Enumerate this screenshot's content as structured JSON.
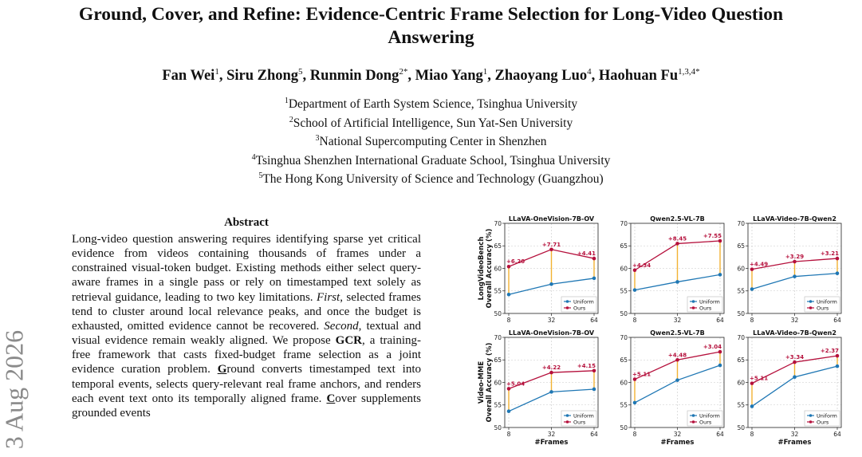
{
  "paper": {
    "title": "Ground, Cover, and Refine: Evidence-Centric Frame Selection for Long-Video Question Answering",
    "authors": [
      {
        "name": "Fan Wei",
        "sup": "1"
      },
      {
        "name": "Siru Zhong",
        "sup": "5"
      },
      {
        "name": "Runmin Dong",
        "sup": "2*"
      },
      {
        "name": "Miao Yang",
        "sup": "1"
      },
      {
        "name": "Zhaoyang Luo",
        "sup": "4"
      },
      {
        "name": "Haohuan Fu",
        "sup": "1,3,4*"
      }
    ],
    "affiliations": [
      {
        "num": "1",
        "text": "Department of Earth System Science, Tsinghua University"
      },
      {
        "num": "2",
        "text": "School of Artificial Intelligence, Sun Yat-Sen University"
      },
      {
        "num": "3",
        "text": "National Supercomputing Center in Shenzhen"
      },
      {
        "num": "4",
        "text": "Tsinghua Shenzhen International Graduate School, Tsinghua University"
      },
      {
        "num": "5",
        "text": "The Hong Kong University of Science and Technology (Guangzhou)"
      }
    ],
    "arxiv_stamp": "3 Aug 2026",
    "abstract_heading": "Abstract",
    "abstract": {
      "p1": "Long-video question answering requires identifying sparse yet critical evidence from videos containing thousands of frames under a constrained visual-token budget. Existing methods either select query-aware frames in a single pass or rely on timestamped text solely as retrieval guidance, leading to two key limitations. ",
      "first": "First",
      "p2": ", selected frames tend to cluster around local relevance peaks, and once the budget is exhausted, omitted evidence cannot be recovered. ",
      "second": "Second",
      "p3": ", textual and visual evidence remain weakly aligned. We propose ",
      "gcr": "GCR",
      "p4": ", a training-free framework that casts fixed-budget frame selection as a joint evidence curation problem. ",
      "g_letter": "G",
      "p5": "round converts timestamped text into temporal events, selects query-relevant real frame anchors, and renders each event text onto its temporally aligned frame. ",
      "c_letter": "C",
      "p6": "over supplements grounded events"
    }
  },
  "figure": {
    "xlabel": "#Frames",
    "row_labels": [
      [
        "LongVideoBench",
        "Overall Accuracy (%)"
      ],
      [
        "Video-MME",
        "Overall Accuracy (%)"
      ]
    ],
    "legend": [
      "Uniform",
      "Ours"
    ]
  },
  "colors": {
    "uniform": "#1f77b4",
    "ours": "#b5103c",
    "gap": "#f2b233",
    "grid": "#c8c8c8",
    "annotation": "#b5103c"
  },
  "chart_data": [
    {
      "type": "line",
      "benchmark": "LongVideoBench",
      "title": "LLaVA-OneVision-7B-OV",
      "xlabel": "",
      "ylabel": "Overall Accuracy (%)",
      "x": [
        8,
        32,
        64
      ],
      "ylim": [
        50,
        70
      ],
      "yticks": [
        50,
        55,
        60,
        65,
        70
      ],
      "legend_position": "lower-right",
      "series": [
        {
          "name": "Uniform",
          "values": [
            54.2,
            56.5,
            57.8
          ]
        },
        {
          "name": "Ours",
          "values": [
            60.4,
            64.2,
            62.2
          ]
        }
      ],
      "annotations": [
        "+6.20",
        "+7.71",
        "+4.41"
      ]
    },
    {
      "type": "line",
      "benchmark": "LongVideoBench",
      "title": "Qwen2.5-VL-7B",
      "xlabel": "",
      "ylabel": "",
      "x": [
        8,
        32,
        64
      ],
      "ylim": [
        50,
        70
      ],
      "yticks": [
        50,
        55,
        60,
        65,
        70
      ],
      "legend_position": "lower-right",
      "series": [
        {
          "name": "Uniform",
          "values": [
            55.2,
            57.0,
            58.6
          ]
        },
        {
          "name": "Ours",
          "values": [
            59.6,
            65.5,
            66.1
          ]
        }
      ],
      "annotations": [
        "+4.34",
        "+8.45",
        "+7.55"
      ]
    },
    {
      "type": "line",
      "benchmark": "LongVideoBench",
      "title": "LLaVA-Video-7B-Qwen2",
      "xlabel": "",
      "ylabel": "",
      "x": [
        8,
        32,
        64
      ],
      "ylim": [
        50,
        70
      ],
      "yticks": [
        50,
        55,
        60,
        65,
        70
      ],
      "legend_position": "lower-right",
      "series": [
        {
          "name": "Uniform",
          "values": [
            55.4,
            58.2,
            58.9
          ]
        },
        {
          "name": "Ours",
          "values": [
            59.8,
            61.5,
            62.2
          ]
        }
      ],
      "annotations": [
        "+4.49",
        "+3.29",
        "+3.21"
      ]
    },
    {
      "type": "line",
      "benchmark": "Video-MME",
      "title": "LLaVA-OneVision-7B-OV",
      "xlabel": "#Frames",
      "ylabel": "Overall Accuracy (%)",
      "x": [
        8,
        32,
        64
      ],
      "ylim": [
        50,
        70
      ],
      "yticks": [
        50,
        55,
        60,
        65,
        70
      ],
      "legend_position": "lower-right",
      "series": [
        {
          "name": "Uniform",
          "values": [
            53.6,
            57.9,
            58.5
          ]
        },
        {
          "name": "Ours",
          "values": [
            58.6,
            62.2,
            62.6
          ]
        }
      ],
      "annotations": [
        "+5.04",
        "+4.22",
        "+4.15"
      ]
    },
    {
      "type": "line",
      "benchmark": "Video-MME",
      "title": "Qwen2.5-VL-7B",
      "xlabel": "#Frames",
      "ylabel": "",
      "x": [
        8,
        32,
        64
      ],
      "ylim": [
        50,
        70
      ],
      "yticks": [
        50,
        55,
        60,
        65,
        70
      ],
      "legend_position": "lower-right",
      "series": [
        {
          "name": "Uniform",
          "values": [
            55.5,
            60.5,
            63.8
          ]
        },
        {
          "name": "Ours",
          "values": [
            60.7,
            65.0,
            66.8
          ]
        }
      ],
      "annotations": [
        "+5.11",
        "+4.48",
        "+3.04"
      ]
    },
    {
      "type": "line",
      "benchmark": "Video-MME",
      "title": "LLaVA-Video-7B-Qwen2",
      "xlabel": "#Frames",
      "ylabel": "",
      "x": [
        8,
        32,
        64
      ],
      "ylim": [
        50,
        70
      ],
      "yticks": [
        50,
        55,
        60,
        65,
        70
      ],
      "legend_position": "lower-right",
      "series": [
        {
          "name": "Uniform",
          "values": [
            54.7,
            61.2,
            63.6
          ]
        },
        {
          "name": "Ours",
          "values": [
            59.8,
            64.5,
            65.9
          ]
        }
      ],
      "annotations": [
        "+5.11",
        "+3.34",
        "+2.37"
      ]
    }
  ]
}
